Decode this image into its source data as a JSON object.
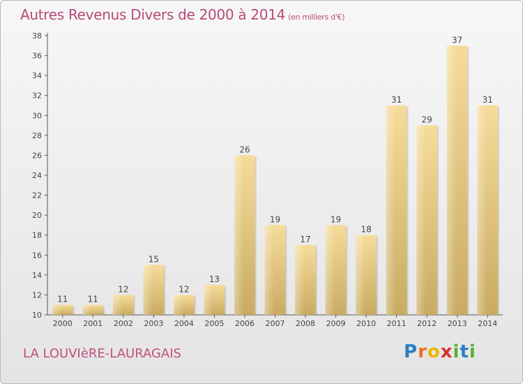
{
  "page": {
    "title": "Autres Revenus Divers de 2000 à 2014",
    "title_unit": "(en milliers d'€)",
    "commune": "LA LOUVIèRE-LAURAGAIS",
    "logo_letters": [
      "P",
      "r",
      "o",
      "x",
      "i",
      "t",
      "i"
    ],
    "logo_colors": [
      "#2a7fc2",
      "#e8702a",
      "#f0b400",
      "#d8312b",
      "#5ab031",
      "#2a7fc2",
      "#5ab031"
    ]
  },
  "chart_data": {
    "type": "bar",
    "categories": [
      "2000",
      "2001",
      "2002",
      "2003",
      "2004",
      "2005",
      "2006",
      "2007",
      "2008",
      "2009",
      "2010",
      "2011",
      "2012",
      "2013",
      "2014"
    ],
    "values": [
      11,
      11,
      12,
      15,
      12,
      13,
      26,
      19,
      17,
      19,
      18,
      31,
      29,
      37,
      31
    ],
    "ylim": [
      10,
      38
    ],
    "yticks": [
      10,
      12,
      14,
      16,
      18,
      20,
      22,
      24,
      26,
      28,
      30,
      32,
      34,
      36,
      38
    ],
    "grid": false,
    "bar_color": "#e3c77f",
    "text_color": "#444444"
  }
}
